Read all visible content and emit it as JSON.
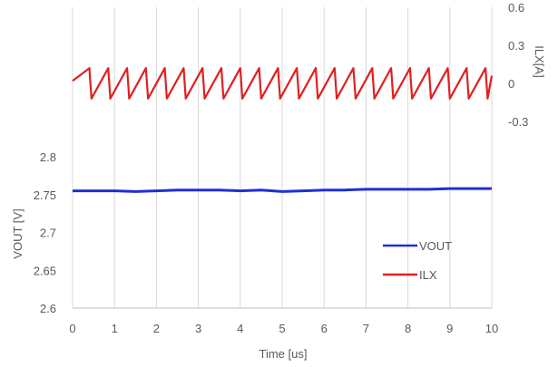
{
  "chart_data": {
    "type": "line",
    "xlabel": "Time [us]",
    "x_ticks": [
      "0",
      "1",
      "2",
      "3",
      "4",
      "5",
      "6",
      "7",
      "8",
      "9",
      "10"
    ],
    "xlim": [
      0,
      10
    ],
    "left_axis": {
      "label": "VOUT [V]",
      "ylim": [
        2.6,
        2.8
      ],
      "ticks": [
        "2.6",
        "2.65",
        "2.7",
        "2.75",
        "2.8"
      ]
    },
    "right_axis": {
      "label": "ILX[A]",
      "ylim": [
        -0.3,
        0.6
      ],
      "ticks": [
        "-0.3",
        "0",
        "0.3",
        "0.6"
      ]
    },
    "grid": "vertical",
    "legend_position": "bottom-right",
    "series": [
      {
        "name": "VOUT",
        "axis": "left",
        "color": "#1f2fd6",
        "x": [
          0,
          0.5,
          1,
          1.5,
          2,
          2.5,
          3,
          3.5,
          4,
          4.5,
          5,
          5.5,
          6,
          6.5,
          7,
          7.5,
          8,
          8.5,
          9,
          9.5,
          10
        ],
        "values": [
          2.755,
          2.755,
          2.755,
          2.754,
          2.755,
          2.756,
          2.756,
          2.756,
          2.755,
          2.756,
          2.754,
          2.755,
          2.756,
          2.756,
          2.757,
          2.757,
          2.757,
          2.757,
          2.758,
          2.758,
          2.758
        ]
      },
      {
        "name": "ILX",
        "axis": "right",
        "color": "#e02020",
        "x": [
          0,
          0.4,
          0.45,
          0.85,
          0.9,
          1.3,
          1.35,
          1.75,
          1.8,
          2.2,
          2.25,
          2.65,
          2.7,
          3.1,
          3.15,
          3.55,
          3.6,
          4.0,
          4.05,
          4.45,
          4.5,
          4.9,
          4.95,
          5.35,
          5.4,
          5.8,
          5.85,
          6.25,
          6.3,
          6.7,
          6.75,
          7.15,
          7.2,
          7.6,
          7.65,
          8.05,
          8.1,
          8.5,
          8.55,
          8.95,
          9.0,
          9.4,
          9.45,
          9.85,
          9.9,
          10
        ],
        "values": [
          0.02,
          0.12,
          -0.12,
          0.12,
          -0.12,
          0.12,
          -0.12,
          0.12,
          -0.12,
          0.12,
          -0.12,
          0.12,
          -0.12,
          0.12,
          -0.12,
          0.12,
          -0.12,
          0.12,
          -0.12,
          0.12,
          -0.12,
          0.12,
          -0.12,
          0.12,
          -0.12,
          0.12,
          -0.12,
          0.12,
          -0.12,
          0.12,
          -0.12,
          0.12,
          -0.12,
          0.12,
          -0.12,
          0.12,
          -0.12,
          0.12,
          -0.12,
          0.12,
          -0.12,
          0.12,
          -0.12,
          0.12,
          -0.12,
          0.06
        ]
      }
    ]
  }
}
